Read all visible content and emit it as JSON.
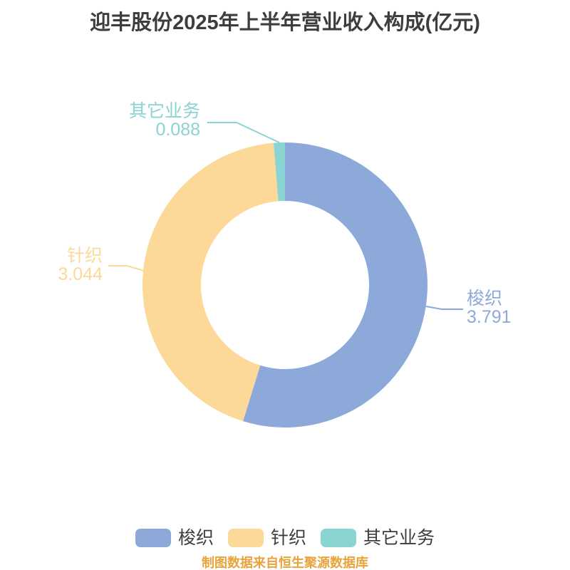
{
  "chart_data": {
    "type": "pie",
    "title": "迎丰股份2025年上半年营业收入构成(亿元)",
    "source_note": "制图数据来自恒生聚源数据库",
    "unit": "亿元",
    "donut": true,
    "legend_position": "bottom",
    "start_angle_deg_clockwise_from_top": 0,
    "series": [
      {
        "name": "梭织",
        "value": 3.791,
        "color": "#8ca9da"
      },
      {
        "name": "针织",
        "value": 3.044,
        "color": "#fcd999"
      },
      {
        "name": "其它业务",
        "value": 0.088,
        "color": "#8ad4d1"
      }
    ],
    "text_color": "#3d3d3d",
    "note_color": "#e8a33c"
  }
}
